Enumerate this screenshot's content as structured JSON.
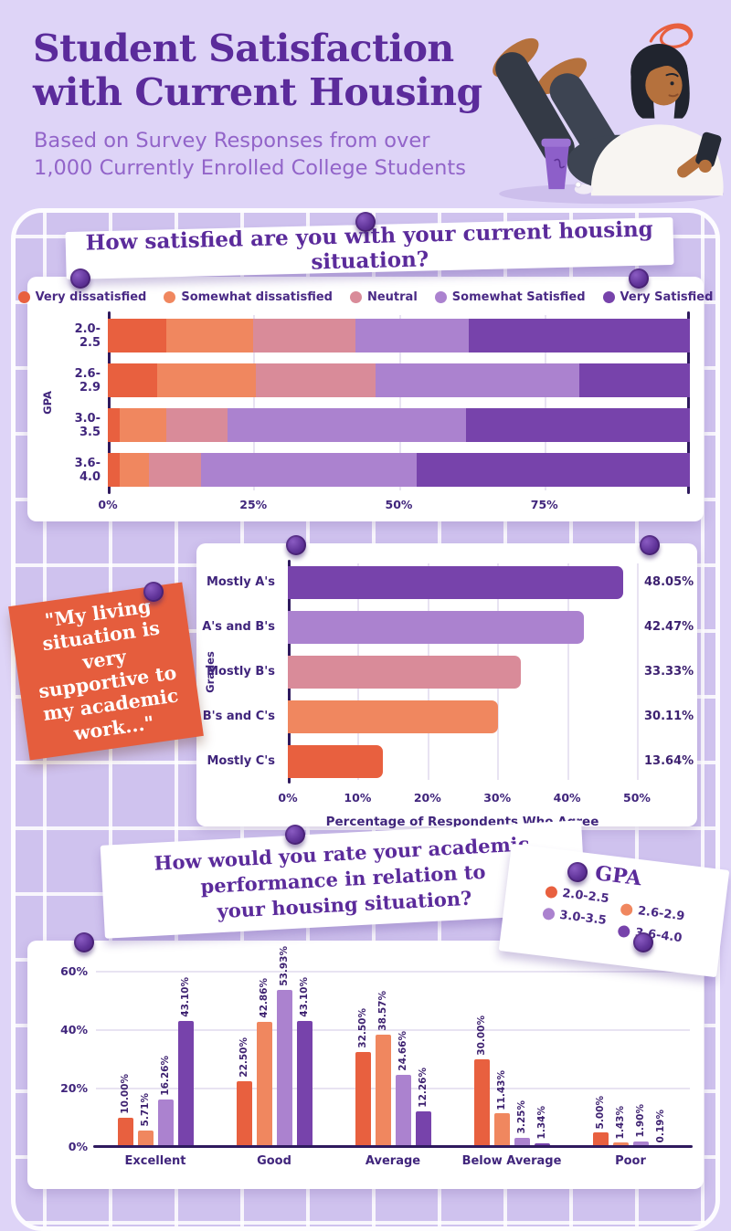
{
  "page": {
    "title_line1": "Student Satisfaction",
    "title_line2": "with Current Housing",
    "subtitle_line1": "Based on Survey Responses from over",
    "subtitle_line2": "1,000 Currently Enrolled College Students"
  },
  "banners": {
    "q1": "How satisfied are you with your current housing situation?",
    "q2_line1": "How would you rate your academic",
    "q2_line2": "performance in relation to",
    "q2_line3": "your housing situation?"
  },
  "sticky_note": {
    "text": "\"My living situation is very supportive to my academic work...\""
  },
  "palette": {
    "very_dissatisfied": "#e8603f",
    "somewhat_dissatisfied": "#f0875f",
    "neutral": "#d98b99",
    "somewhat_satisfied": "#ab82cf",
    "very_satisfied": "#7743ab",
    "background": "#ded4f7",
    "board": "#cfc2ee",
    "card": "#ffffff",
    "heading": "#5b2b9b",
    "subtitle_text": "#9264c9",
    "label_text": "#40257c",
    "axis": "#2f1a5e",
    "sticky_note": "#e55d3d",
    "pin": "#5e3297"
  },
  "chart_data": [
    {
      "type": "bar",
      "variant": "stacked-horizontal-percent",
      "title": "How satisfied are you with your current housing situation?",
      "ylabel": "GPA",
      "categories": [
        "2.0-2.5",
        "2.6-2.9",
        "3.0-3.5",
        "3.6-4.0"
      ],
      "legend": [
        "Very dissatisfied",
        "Somewhat dissatisfied",
        "Neutral",
        "Somewhat Satisfied",
        "Very Satisfied"
      ],
      "legend_position": "top",
      "series_colors": [
        "#e8603f",
        "#f0875f",
        "#d98b99",
        "#ab82cf",
        "#7743ab"
      ],
      "series": [
        {
          "name": "Very dissatisfied",
          "values": [
            10,
            8.5,
            2,
            2
          ]
        },
        {
          "name": "Somewhat dissatisfied",
          "values": [
            15,
            17,
            8,
            5
          ]
        },
        {
          "name": "Neutral",
          "values": [
            17.5,
            20.5,
            10.5,
            9
          ]
        },
        {
          "name": "Somewhat Satisfied",
          "values": [
            19.5,
            35,
            41,
            37
          ]
        },
        {
          "name": "Very Satisfied",
          "values": [
            38,
            19,
            38.5,
            47
          ]
        }
      ],
      "x_ticks": [
        "0%",
        "25%",
        "50%",
        "75%"
      ],
      "xlim": [
        0,
        100
      ],
      "grid": "vertical"
    },
    {
      "type": "bar",
      "variant": "horizontal",
      "ylabel": "Grades",
      "xlabel": "Percentage of Respondents Who Agree",
      "categories": [
        "Mostly A's",
        "A's and B's",
        "Mostly B's",
        "B's and C's",
        "Mostly C's"
      ],
      "values": [
        48.05,
        42.47,
        33.33,
        30.11,
        13.64
      ],
      "labels": [
        "48.05%",
        "42.47%",
        "33.33%",
        "30.11%",
        "13.64%"
      ],
      "bar_colors": [
        "#7743ab",
        "#ab82cf",
        "#d98b99",
        "#f0875f",
        "#e8603f"
      ],
      "x_ticks": [
        "0%",
        "10%",
        "20%",
        "30%",
        "40%",
        "50%"
      ],
      "xlim": [
        0,
        50
      ],
      "grid": "vertical"
    },
    {
      "type": "bar",
      "variant": "grouped-vertical",
      "title": "How would you rate your academic performance in relation to your housing situation?",
      "legend_title": "GPA",
      "categories": [
        "Excellent",
        "Good",
        "Average",
        "Below Average",
        "Poor"
      ],
      "series": [
        {
          "name": "2.0-2.5",
          "color": "#e8603f",
          "values": [
            10.0,
            22.5,
            32.5,
            30.0,
            5.0
          ],
          "labels": [
            "10.00%",
            "22.50%",
            "32.50%",
            "30.00%",
            "5.00%"
          ]
        },
        {
          "name": "2.6-2.9",
          "color": "#f0875f",
          "values": [
            5.71,
            42.86,
            38.57,
            11.43,
            1.43
          ],
          "labels": [
            "5.71%",
            "42.86%",
            "38.57%",
            "11.43%",
            "1.43%"
          ]
        },
        {
          "name": "3.0-3.5",
          "color": "#ab82cf",
          "values": [
            16.26,
            53.93,
            24.66,
            3.25,
            1.9
          ],
          "labels": [
            "16.26%",
            "53.93%",
            "24.66%",
            "3.25%",
            "1.90%"
          ]
        },
        {
          "name": "3.6-4.0",
          "color": "#7743ab",
          "values": [
            43.1,
            43.1,
            12.26,
            1.34,
            0.19
          ],
          "labels": [
            "43.10%",
            "43.10%",
            "12.26%",
            "1.34%",
            "0.19%"
          ]
        }
      ],
      "y_ticks": [
        "0%",
        "20%",
        "40%",
        "60%"
      ],
      "ylim": [
        0,
        60
      ],
      "grid": "horizontal"
    }
  ]
}
